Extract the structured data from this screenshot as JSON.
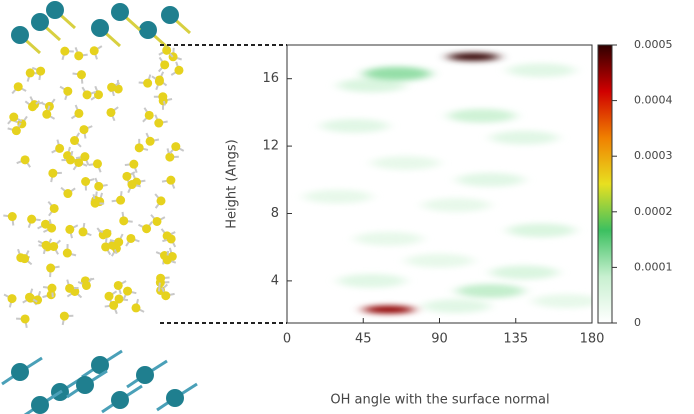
{
  "chart_data": {
    "type": "heatmap",
    "xlabel": "OH angle with the surface normal",
    "ylabel": "Height (Angs)",
    "xlim": [
      0,
      180
    ],
    "xticks": [
      0,
      45,
      90,
      135,
      180
    ],
    "ylim": [
      1.5,
      18
    ],
    "yticks": [
      4,
      8,
      12,
      16
    ],
    "clim": [
      0,
      0.0005
    ],
    "cticks": [
      0,
      0.0001,
      0.0002,
      0.0003,
      0.0004,
      0.0005
    ],
    "colormap": [
      "#ffffff",
      "#c8f0d0",
      "#3cc060",
      "#e8e020",
      "#f08000",
      "#d00000",
      "#300000"
    ],
    "points": [
      {
        "x": 50,
        "y": 15.6,
        "value": 6e-05
      },
      {
        "x": 150,
        "y": 16.5,
        "value": 5e-05
      },
      {
        "x": 40,
        "y": 13.2,
        "value": 5e-05
      },
      {
        "x": 140,
        "y": 12.5,
        "value": 5e-05
      },
      {
        "x": 70,
        "y": 11,
        "value": 4e-05
      },
      {
        "x": 120,
        "y": 10,
        "value": 5e-05
      },
      {
        "x": 30,
        "y": 9,
        "value": 4e-05
      },
      {
        "x": 100,
        "y": 8.5,
        "value": 4e-05
      },
      {
        "x": 150,
        "y": 7,
        "value": 6e-05
      },
      {
        "x": 60,
        "y": 6.5,
        "value": 4e-05
      },
      {
        "x": 90,
        "y": 5.2,
        "value": 4e-05
      },
      {
        "x": 140,
        "y": 4.5,
        "value": 6e-05
      },
      {
        "x": 50,
        "y": 4,
        "value": 5e-05
      },
      {
        "x": 165,
        "y": 2.8,
        "value": 4e-05
      },
      {
        "x": 100,
        "y": 2.5,
        "value": 5e-05
      },
      {
        "x": 115,
        "y": 13.8,
        "value": 8e-05
      },
      {
        "x": 120,
        "y": 3.4,
        "value": 9e-05
      },
      {
        "x": 65,
        "y": 16.3,
        "value": 0.00012
      },
      {
        "x": 60,
        "y": 2.3,
        "value": 0.00045
      },
      {
        "x": 110,
        "y": 17.3,
        "value": 0.0005
      }
    ]
  }
}
